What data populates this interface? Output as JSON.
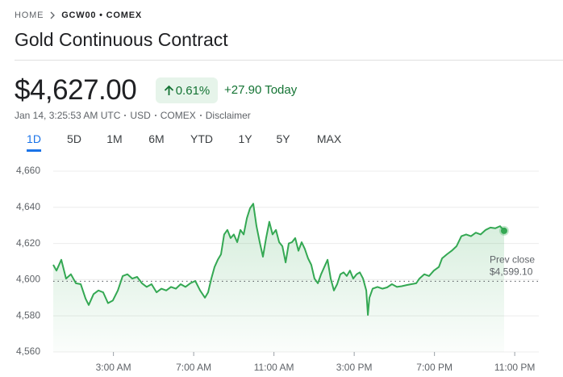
{
  "breadcrumb": [
    "HOME",
    "GCW00 • COMEX"
  ],
  "title": "Gold Continuous Contract",
  "price": "$4,627.00",
  "change_percent": "0.61%",
  "change_today": "+27.90 Today",
  "meta": [
    "Jan 14, 3:25:53 AM UTC",
    "USD",
    "COMEX",
    "Disclaimer"
  ],
  "tabs": [
    "1D",
    "5D",
    "1M",
    "6M",
    "YTD",
    "1Y",
    "5Y",
    "MAX"
  ],
  "selected_tab": 0,
  "chart_data": {
    "type": "line",
    "color": "#34a853",
    "grid": true,
    "x": [
      0,
      0.16,
      0.4,
      0.64,
      0.88,
      1.13,
      1.37,
      1.61,
      1.77,
      2.01,
      2.25,
      2.49,
      2.73,
      2.97,
      3.22,
      3.46,
      3.7,
      3.94,
      4.18,
      4.42,
      4.66,
      4.9,
      5.15,
      5.39,
      5.63,
      5.87,
      6.11,
      6.35,
      6.59,
      6.83,
      7.08,
      7.32,
      7.56,
      7.72,
      7.88,
      8.04,
      8.2,
      8.36,
      8.52,
      8.68,
      8.84,
      9.0,
      9.17,
      9.33,
      9.49,
      9.65,
      9.81,
      9.97,
      10.13,
      10.29,
      10.45,
      10.61,
      10.77,
      10.93,
      11.1,
      11.26,
      11.42,
      11.58,
      11.74,
      11.9,
      12.06,
      12.22,
      12.38,
      12.54,
      12.7,
      12.86,
      13.02,
      13.19,
      13.35,
      13.51,
      13.67,
      13.83,
      13.99,
      14.15,
      14.31,
      14.47,
      14.63,
      14.79,
      14.95,
      15.12,
      15.28,
      15.44,
      15.6,
      15.68,
      15.76,
      15.92,
      16.16,
      16.4,
      16.64,
      16.88,
      17.13,
      17.37,
      17.61,
      17.85,
      18.09,
      18.25,
      18.49,
      18.73,
      18.97,
      19.22,
      19.38,
      19.62,
      19.86,
      20.1,
      20.34,
      20.58,
      20.82,
      21.06,
      21.3,
      21.55,
      21.79,
      22.03,
      22.27,
      22.47
    ],
    "values": [
      4608.2,
      4605,
      4611,
      4600.6,
      4603,
      4598,
      4597.5,
      4589.5,
      4586,
      4592,
      4594,
      4593,
      4587,
      4588.5,
      4594,
      4602,
      4603,
      4600.6,
      4601.5,
      4598,
      4596,
      4597.5,
      4593,
      4595,
      4594,
      4596,
      4595,
      4597.5,
      4596,
      4598,
      4599.3,
      4594,
      4590,
      4593,
      4600.6,
      4607,
      4611,
      4614,
      4625,
      4627.5,
      4623,
      4625,
      4620.7,
      4627.5,
      4625,
      4634,
      4639.5,
      4642,
      4629.6,
      4620.7,
      4612.7,
      4623,
      4632,
      4625,
      4627.5,
      4620.7,
      4618.5,
      4609.5,
      4620,
      4620.7,
      4623,
      4616,
      4620.7,
      4617,
      4611.8,
      4608.2,
      4600.6,
      4598,
      4603,
      4607,
      4611,
      4600.6,
      4594,
      4597.5,
      4603,
      4604,
      4602,
      4605,
      4600.6,
      4603,
      4604,
      4600.6,
      4594,
      4580.5,
      4590,
      4595,
      4596,
      4595,
      4595.7,
      4597.5,
      4596,
      4596.4,
      4597,
      4597.5,
      4598,
      4600.6,
      4603,
      4602,
      4605,
      4607,
      4611.8,
      4614,
      4616,
      4618.5,
      4624,
      4625,
      4624,
      4626,
      4625,
      4627.5,
      4628.8,
      4628.4,
      4629.6,
      4627
    ],
    "xlim": [
      0,
      24.2
    ],
    "xticks": [
      {
        "value": 3,
        "label": "3:00 AM"
      },
      {
        "value": 7,
        "label": "7:00 AM"
      },
      {
        "value": 11,
        "label": "11:00 AM"
      },
      {
        "value": 15,
        "label": "3:00 PM"
      },
      {
        "value": 19,
        "label": "7:00 PM"
      },
      {
        "value": 23,
        "label": "11:00 PM"
      }
    ],
    "ylim": [
      4560,
      4660
    ],
    "yticks": [
      {
        "value": 4560,
        "label": "4,560"
      },
      {
        "value": 4580,
        "label": "4,580"
      },
      {
        "value": 4600,
        "label": "4,600"
      },
      {
        "value": 4620,
        "label": "4,620"
      },
      {
        "value": 4640,
        "label": "4,640"
      },
      {
        "value": 4660,
        "label": "4,660"
      }
    ],
    "prev_close_title": "Prev close",
    "prev_close": {
      "value": 4599.1,
      "label": "$4,599.10"
    }
  }
}
